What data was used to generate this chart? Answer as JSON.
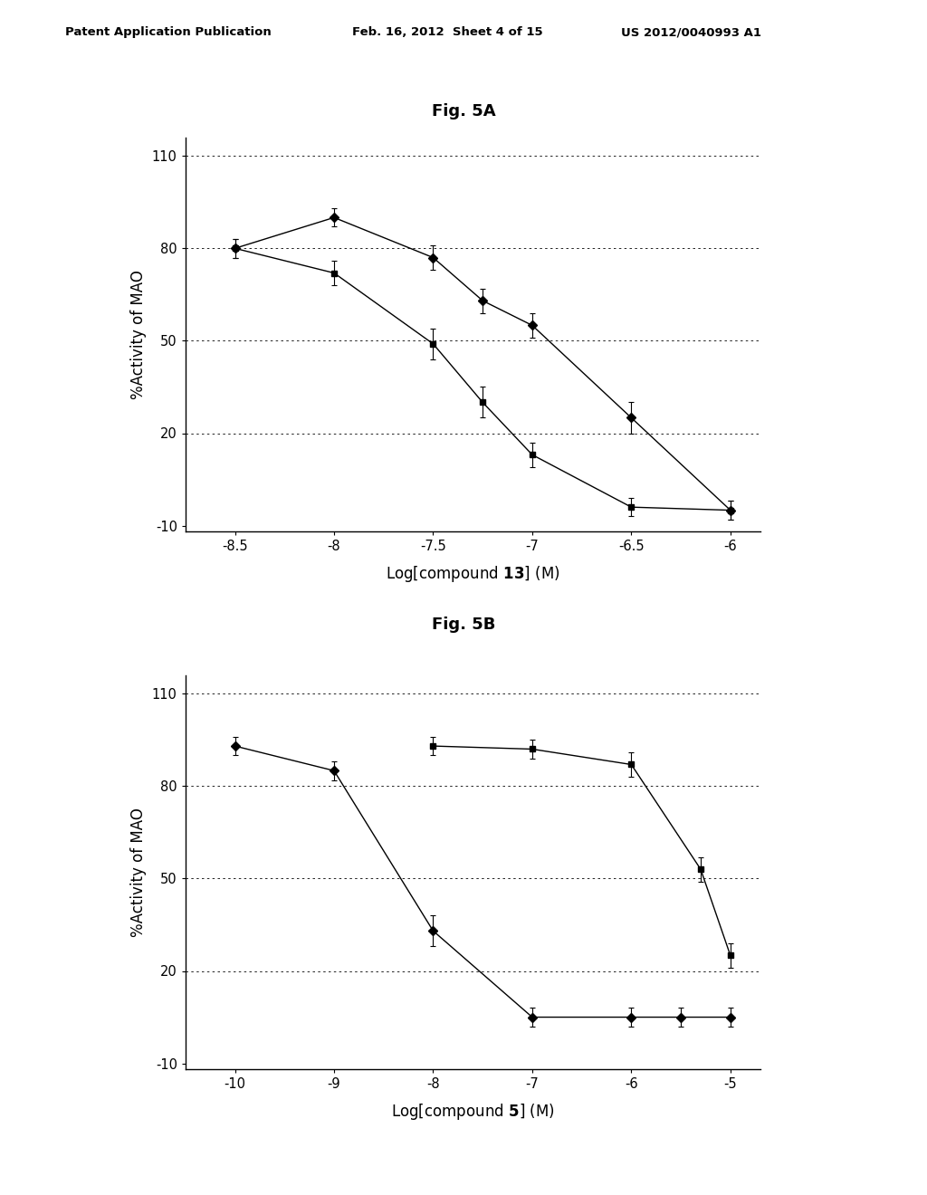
{
  "fig5A": {
    "title": "Fig. 5A",
    "xlabel_prefix": "Log[compound ",
    "xlabel_number": "13",
    "xlabel_suffix": "] (M)",
    "ylabel": "%Activity of MAO",
    "xlim": [
      -8.75,
      -5.85
    ],
    "ylim": [
      -12,
      116
    ],
    "xticks": [
      -8.5,
      -8.0,
      -7.5,
      -7.0,
      -6.5,
      -6.0
    ],
    "xtick_labels": [
      "-8.5",
      "-8",
      "-7.5",
      "-7",
      "-6.5",
      "-6"
    ],
    "yticks": [
      -10,
      20,
      50,
      80,
      110
    ],
    "gridlines": [
      20,
      50,
      80,
      110
    ],
    "series_diamond": {
      "x": [
        -8.5,
        -8.0,
        -7.5,
        -7.25,
        -7.0,
        -6.5,
        -6.0
      ],
      "y": [
        80,
        90,
        77,
        63,
        55,
        25,
        -5
      ],
      "yerr": [
        3,
        3,
        4,
        4,
        4,
        5,
        3
      ],
      "marker": "D",
      "markersize": 5
    },
    "series_square": {
      "x": [
        -8.5,
        -8.0,
        -7.5,
        -7.25,
        -7.0,
        -6.5,
        -6.0
      ],
      "y": [
        80,
        72,
        49,
        30,
        13,
        -4,
        -5
      ],
      "yerr": [
        3,
        4,
        5,
        5,
        4,
        3,
        3
      ],
      "marker": "s",
      "markersize": 5
    }
  },
  "fig5B": {
    "title": "Fig. 5B",
    "xlabel_prefix": "Log[compound ",
    "xlabel_number": "5",
    "xlabel_suffix": "] (M)",
    "ylabel": "%Activity of MAO",
    "xlim": [
      -10.5,
      -4.7
    ],
    "ylim": [
      -12,
      116
    ],
    "xticks": [
      -10,
      -9,
      -8,
      -7,
      -6,
      -5
    ],
    "xtick_labels": [
      "-10",
      "-9",
      "-8",
      "-7",
      "-6",
      "-5"
    ],
    "yticks": [
      -10,
      20,
      50,
      80,
      110
    ],
    "gridlines": [
      20,
      50,
      80,
      110
    ],
    "series_diamond": {
      "x": [
        -10,
        -9,
        -8,
        -7,
        -6,
        -5.5,
        -5.0
      ],
      "y": [
        93,
        85,
        33,
        5,
        5,
        5,
        5
      ],
      "yerr": [
        3,
        3,
        5,
        3,
        3,
        3,
        3
      ],
      "marker": "D",
      "markersize": 5
    },
    "series_square": {
      "x": [
        -8,
        -7,
        -6,
        -5.3,
        -5.0
      ],
      "y": [
        93,
        92,
        87,
        53,
        25
      ],
      "yerr": [
        3,
        3,
        4,
        4,
        4
      ],
      "marker": "s",
      "markersize": 5
    }
  },
  "header": {
    "left": "Patent Application Publication",
    "center": "Feb. 16, 2012  Sheet 4 of 15",
    "right": "US 2012/0040993 A1"
  },
  "bg_color": "#ffffff",
  "text_color": "#000000",
  "line_color": "#000000"
}
